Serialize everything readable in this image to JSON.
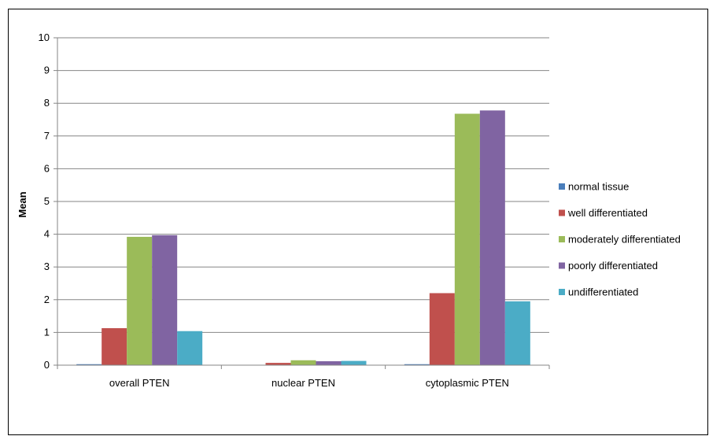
{
  "chart_data": {
    "type": "bar",
    "title": "",
    "xlabel": "",
    "ylabel": "Mean",
    "ylim": [
      0,
      10
    ],
    "yticks": [
      0,
      1,
      2,
      3,
      4,
      5,
      6,
      7,
      8,
      9,
      10
    ],
    "grid": true,
    "legend_position": "right",
    "categories": [
      "overall PTEN",
      "nuclear PTEN",
      "cytoplasmic PTEN"
    ],
    "series": [
      {
        "name": "normal tissue",
        "color": "#4a7ebb",
        "values": [
          0.03,
          0.0,
          0.03
        ]
      },
      {
        "name": "well differentiated",
        "color": "#c0504d",
        "values": [
          1.13,
          0.07,
          2.2
        ]
      },
      {
        "name": "moderately differentiated",
        "color": "#9bbb59",
        "values": [
          3.92,
          0.15,
          7.68
        ]
      },
      {
        "name": "poorly differentiated",
        "color": "#8064a2",
        "values": [
          3.97,
          0.12,
          7.78
        ]
      },
      {
        "name": "undifferentiated",
        "color": "#4bacc6",
        "values": [
          1.04,
          0.13,
          1.95
        ]
      }
    ]
  }
}
